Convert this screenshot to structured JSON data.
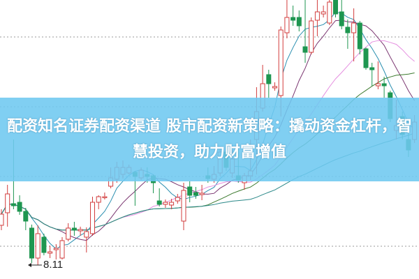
{
  "title": "配资知名证券配资渠道 股市配资新策略：撬动资金杠杆，智慧投资，助力财富增值",
  "chart_data": {
    "type": "candlestick",
    "title": "配资知名证券配资渠道 股市配资新策略：撬动资金杠杆，智慧投资，助力财富增值",
    "xlabel": "",
    "ylabel": "",
    "ylim": [
      7.91,
      11.91
    ],
    "grid": true,
    "annotation": {
      "label": "8.11",
      "value": 8.11
    },
    "colors": {
      "up": "#d23c3c",
      "down": "#1e9650",
      "ma": [
        "#2a8fb0",
        "#7a3570",
        "#e58fe0",
        "#3c7a2e",
        "#2a8888"
      ],
      "grid": "#9a9a9a",
      "banner": "#6ec8f0"
    },
    "candles": [
      [
        8.68,
        8.84,
        8.91,
        8.61
      ],
      [
        8.86,
        9.13,
        9.26,
        8.66
      ],
      [
        8.99,
        8.96,
        9.91,
        8.91
      ],
      [
        9.01,
        8.88,
        9.11,
        8.83
      ],
      [
        8.88,
        8.74,
        8.93,
        8.61
      ],
      [
        8.64,
        8.21,
        8.69,
        8.14
      ],
      [
        8.21,
        8.56,
        8.68,
        8.11
      ],
      [
        8.51,
        8.29,
        8.56,
        8.25
      ],
      [
        8.28,
        8.3,
        8.39,
        8.21
      ],
      [
        8.33,
        8.35,
        8.41,
        8.19
      ],
      [
        8.21,
        8.46,
        8.51,
        8.19
      ],
      [
        8.48,
        8.64,
        8.71,
        8.45
      ],
      [
        8.64,
        8.61,
        8.73,
        8.53
      ],
      [
        8.6,
        8.62,
        8.66,
        8.53
      ],
      [
        8.51,
        8.59,
        8.65,
        8.29
      ],
      [
        8.56,
        9.01,
        9.09,
        8.53
      ],
      [
        9.01,
        9.09,
        9.11,
        8.91
      ],
      [
        9.08,
        9.09,
        9.15,
        9.05
      ],
      [
        9.24,
        9.36,
        9.51,
        9.21
      ],
      [
        9.34,
        9.51,
        9.59,
        9.29
      ],
      [
        9.41,
        9.51,
        9.61,
        9.35
      ],
      [
        9.43,
        9.51,
        9.55,
        9.41
      ],
      [
        9.44,
        9.38,
        9.46,
        8.96
      ],
      [
        9.36,
        9.47,
        9.51,
        9.33
      ],
      [
        9.41,
        9.38,
        9.51,
        9.29
      ],
      [
        9.39,
        9.29,
        9.41,
        9.14
      ],
      [
        9.03,
        8.98,
        9.21,
        8.95
      ],
      [
        8.98,
        9.01,
        9.05,
        8.93
      ],
      [
        8.97,
        9.01,
        9.06,
        8.91
      ],
      [
        9.03,
        9.08,
        9.13,
        8.99
      ],
      [
        8.74,
        9.18,
        9.29,
        8.61
      ],
      [
        9.23,
        9.11,
        9.31,
        9.01
      ],
      [
        9.15,
        9.11,
        9.23,
        9.06
      ],
      [
        9.12,
        9.14,
        9.26,
        9.04
      ],
      [
        9.39,
        9.35,
        9.51,
        9.29
      ],
      [
        9.34,
        9.41,
        9.53,
        9.29
      ],
      [
        9.43,
        9.73,
        9.81,
        9.39
      ],
      [
        9.73,
        9.51,
        9.79,
        9.46
      ],
      [
        9.43,
        9.63,
        9.76,
        9.36
      ],
      [
        9.39,
        9.33,
        9.81,
        9.29
      ],
      [
        9.29,
        9.39,
        9.43,
        9.19
      ],
      [
        9.39,
        9.46,
        9.91,
        9.33
      ],
      [
        9.91,
        10.31,
        10.66,
        9.41
      ],
      [
        10.36,
        10.71,
        10.98,
        10.31
      ],
      [
        10.84,
        10.71,
        10.91,
        10.51
      ],
      [
        10.65,
        10.67,
        10.73,
        10.61
      ],
      [
        10.54,
        11.48,
        11.53,
        10.24
      ],
      [
        11.44,
        11.66,
        11.91,
        11.36
      ],
      [
        11.66,
        11.62,
        11.83,
        11.54
      ],
      [
        11.66,
        11.54,
        11.76,
        11.46
      ],
      [
        11.24,
        11.16,
        11.91,
        11.01
      ],
      [
        11.16,
        11.61,
        11.66,
        11.13
      ],
      [
        11.62,
        11.74,
        11.91,
        11.39
      ],
      [
        11.71,
        11.74,
        11.83,
        11.66
      ],
      [
        11.58,
        11.88,
        11.91,
        11.55
      ],
      [
        11.91,
        11.71,
        11.91,
        11.66
      ],
      [
        11.74,
        11.54,
        11.91,
        11.49
      ],
      [
        11.52,
        11.44,
        11.63,
        11.21
      ],
      [
        11.44,
        11.58,
        11.79,
        11.03
      ],
      [
        11.58,
        11.21,
        11.61,
        11.13
      ],
      [
        11.21,
        10.94,
        11.23,
        10.91
      ],
      [
        10.94,
        10.91,
        11.01,
        10.68
      ],
      [
        10.68,
        10.71,
        11.03,
        10.63
      ],
      [
        10.71,
        10.68,
        10.81,
        10.51
      ],
      [
        10.58,
        10.21,
        10.61,
        10.16
      ],
      [
        10.04,
        10.11,
        10.48,
        9.91
      ],
      [
        10.24,
        9.98,
        10.31,
        9.91
      ],
      [
        9.91,
        9.76,
        10.11,
        9.66
      ],
      [
        9.91,
        10.16,
        10.26,
        9.86
      ]
    ]
  }
}
